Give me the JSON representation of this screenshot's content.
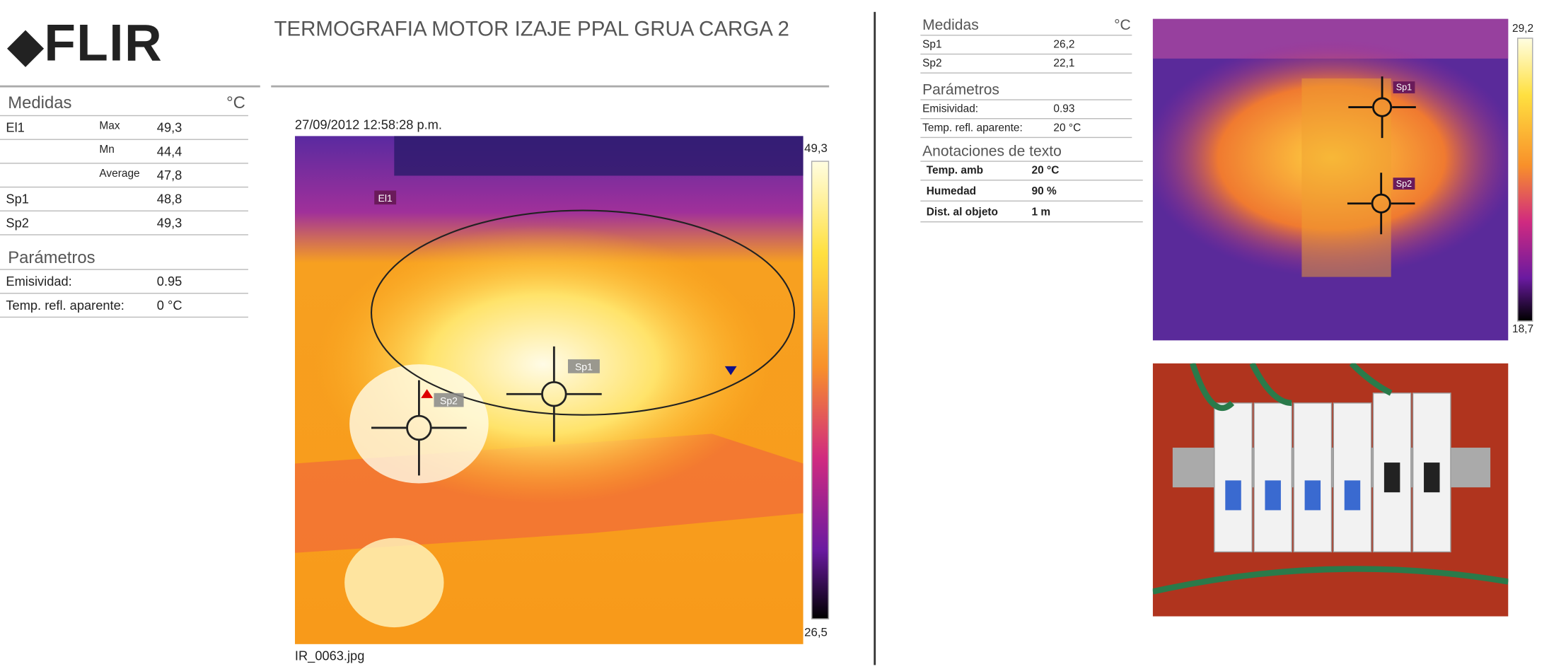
{
  "header": {
    "logo": "FLIR",
    "title": "TERMOGRAFIA MOTOR IZAJE PPAL GRUA CARGA 2"
  },
  "left": {
    "measurements": {
      "heading": "Medidas",
      "unit": "°C",
      "rows": [
        {
          "name": "El1",
          "stat": "Max",
          "value": "49,3"
        },
        {
          "stat": "Mn",
          "value": "44,4"
        },
        {
          "stat": "Average",
          "value": "47,8"
        },
        {
          "name": "Sp1",
          "value": "48,8"
        },
        {
          "name": "Sp2",
          "value": "49,3"
        }
      ]
    },
    "parameters": {
      "heading": "Parámetros",
      "rows": [
        {
          "name": "Emisividad:",
          "value": "0.95"
        },
        {
          "name": "Temp. refl. aparente:",
          "value": "0 °C"
        }
      ]
    }
  },
  "ir_image": {
    "timestamp": "27/09/2012 12:58:28 p.m.",
    "filename": "IR_0063.jpg",
    "scale_max": "49,3",
    "scale_min": "26,5",
    "labels": [
      "El1",
      "Sp1",
      "Sp2"
    ]
  },
  "right": {
    "measurements": {
      "heading": "Medidas",
      "unit": "°C",
      "rows": [
        {
          "name": "Sp1",
          "value": "26,2"
        },
        {
          "name": "Sp2",
          "value": "22,1"
        }
      ]
    },
    "parameters": {
      "heading": "Parámetros",
      "rows": [
        {
          "name": "Emisividad:",
          "value": "0.93"
        },
        {
          "name": "Temp. refl. aparente:",
          "value": "20 °C"
        }
      ]
    },
    "annotations": {
      "heading": "Anotaciones de texto",
      "rows": [
        {
          "name": "Temp. amb",
          "value": "20 °C"
        },
        {
          "name": "Humedad",
          "value": "90 %"
        },
        {
          "name": "Dist. al objeto",
          "value": "1 m"
        }
      ]
    },
    "ir_image": {
      "scale_max": "29,2",
      "scale_min": "18,7",
      "labels": [
        "Sp1",
        "Sp2"
      ]
    }
  }
}
